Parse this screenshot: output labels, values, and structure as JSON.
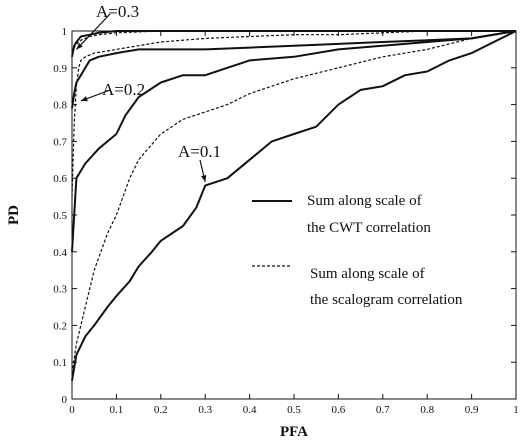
{
  "chart_data": {
    "type": "line",
    "title": "",
    "xlabel": "PFA",
    "ylabel": "PD",
    "xlim": [
      0,
      1
    ],
    "ylim": [
      0,
      1
    ],
    "xticks": [
      "0",
      "0.1",
      "0.2",
      "0.3",
      "0.4",
      "0.5",
      "0.6",
      "0.7",
      "0.8",
      "0.9",
      "1"
    ],
    "yticks": [
      "0",
      "0.1",
      "0.2",
      "0.3",
      "0.4",
      "0.5",
      "0.6",
      "0.7",
      "0.8",
      "0.9",
      "1"
    ],
    "grid": false,
    "legend_position": "right",
    "legend": [
      {
        "label_lines": [
          "Sum along scale of",
          "the CWT correlation"
        ],
        "style": "solid"
      },
      {
        "label_lines": [
          "Sum along scale of",
          "the scalogram correlation"
        ],
        "style": "dashed"
      }
    ],
    "annotations": [
      {
        "text": "A=0.3",
        "target": [
          0.01,
          0.95
        ]
      },
      {
        "text": "A=0.2",
        "target": [
          0.02,
          0.81
        ]
      },
      {
        "text": "A=0.1",
        "target": [
          0.3,
          0.59
        ]
      }
    ],
    "series": [
      {
        "group": "A=0.3",
        "style": "solid",
        "x": [
          0,
          0.005,
          0.01,
          0.02,
          0.04,
          0.06,
          0.1,
          0.2,
          0.4,
          0.6,
          0.8,
          1.0
        ],
        "y": [
          0.93,
          0.96,
          0.97,
          0.985,
          0.99,
          0.995,
          1.0,
          1.0,
          1.0,
          1.0,
          1.0,
          1.0
        ]
      },
      {
        "group": "A=0.3",
        "style": "dashed",
        "x": [
          0,
          0.005,
          0.01,
          0.02,
          0.04,
          0.06,
          0.1,
          0.2,
          0.4,
          0.6,
          0.8,
          1.0
        ],
        "y": [
          0.94,
          0.955,
          0.965,
          0.975,
          0.985,
          0.99,
          0.995,
          1.0,
          1.0,
          1.0,
          1.0,
          1.0
        ]
      },
      {
        "group": "A=0.2",
        "style": "solid",
        "x": [
          0,
          0.005,
          0.01,
          0.02,
          0.03,
          0.04,
          0.06,
          0.1,
          0.15,
          0.2,
          0.3,
          0.4,
          0.5,
          0.6,
          0.7,
          0.8,
          0.9,
          1.0
        ],
        "y": [
          0.79,
          0.83,
          0.86,
          0.88,
          0.9,
          0.92,
          0.93,
          0.94,
          0.95,
          0.95,
          0.95,
          0.955,
          0.96,
          0.965,
          0.97,
          0.975,
          0.98,
          1.0
        ]
      },
      {
        "group": "A=0.2",
        "style": "dashed",
        "x": [
          0,
          0.005,
          0.01,
          0.015,
          0.02,
          0.03,
          0.05,
          0.1,
          0.15,
          0.2,
          0.3,
          0.4,
          0.5,
          0.6,
          0.7,
          0.8,
          0.9,
          1.0
        ],
        "y": [
          0.55,
          0.75,
          0.85,
          0.9,
          0.92,
          0.93,
          0.94,
          0.95,
          0.96,
          0.97,
          0.98,
          0.985,
          0.99,
          0.99,
          0.995,
          1.0,
          1.0,
          1.0
        ]
      },
      {
        "group": "A=0.1",
        "style": "solid",
        "x": [
          0,
          0.01,
          0.03,
          0.06,
          0.08,
          0.1,
          0.12,
          0.15,
          0.2,
          0.25,
          0.3,
          0.35,
          0.4,
          0.5,
          0.6,
          0.7,
          0.8,
          0.9,
          1.0
        ],
        "y": [
          0.4,
          0.6,
          0.64,
          0.68,
          0.7,
          0.72,
          0.77,
          0.82,
          0.86,
          0.88,
          0.88,
          0.9,
          0.92,
          0.93,
          0.95,
          0.96,
          0.97,
          0.98,
          1.0
        ]
      },
      {
        "group": "A=0.1",
        "style": "dashed",
        "x": [
          0,
          0.01,
          0.03,
          0.05,
          0.08,
          0.1,
          0.13,
          0.15,
          0.2,
          0.25,
          0.3,
          0.35,
          0.4,
          0.5,
          0.6,
          0.7,
          0.8,
          0.9,
          1.0
        ],
        "y": [
          0.07,
          0.15,
          0.25,
          0.35,
          0.45,
          0.5,
          0.6,
          0.65,
          0.72,
          0.76,
          0.78,
          0.8,
          0.83,
          0.87,
          0.9,
          0.93,
          0.95,
          0.98,
          1.0
        ]
      },
      {
        "group": "A=0.1",
        "style": "solid",
        "x": [
          0,
          0.01,
          0.03,
          0.05,
          0.08,
          0.1,
          0.13,
          0.15,
          0.18,
          0.2,
          0.25,
          0.28,
          0.3,
          0.35,
          0.4,
          0.45,
          0.5,
          0.55,
          0.6,
          0.65,
          0.7,
          0.75,
          0.8,
          0.85,
          0.9,
          0.95,
          1.0
        ],
        "y": [
          0.05,
          0.12,
          0.17,
          0.2,
          0.25,
          0.28,
          0.32,
          0.36,
          0.4,
          0.43,
          0.47,
          0.52,
          0.58,
          0.6,
          0.65,
          0.7,
          0.72,
          0.74,
          0.8,
          0.84,
          0.85,
          0.88,
          0.89,
          0.92,
          0.94,
          0.97,
          1.0
        ]
      }
    ]
  }
}
